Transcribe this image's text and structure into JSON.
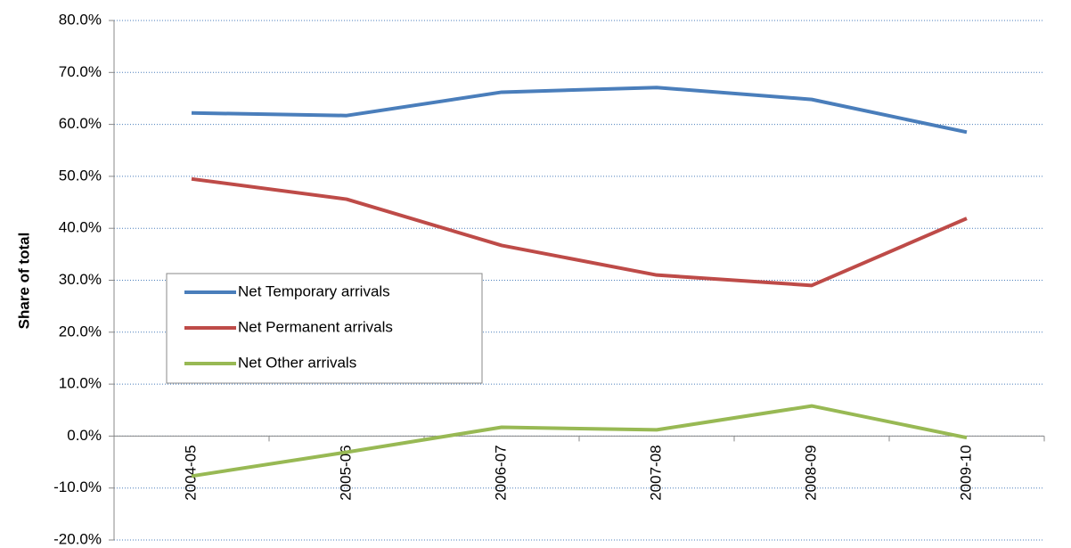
{
  "chart_data": {
    "type": "line",
    "y_label": "Share of total",
    "categories": [
      "2004-05",
      "2005-06",
      "2006-07",
      "2007-08",
      "2008-09",
      "2009-10"
    ],
    "series": [
      {
        "name": "Net Temporary arrivals",
        "color": "#4a7ebb",
        "values": [
          62.2,
          61.7,
          66.2,
          67.1,
          64.8,
          58.5
        ]
      },
      {
        "name": "Net Permanent arrivals",
        "color": "#be4b48",
        "values": [
          49.5,
          45.6,
          36.7,
          31.0,
          29.0,
          41.9
        ]
      },
      {
        "name": "Net Other arrivals",
        "color": "#98b954",
        "values": [
          -7.7,
          -3.1,
          1.7,
          1.2,
          5.8,
          -0.3
        ]
      }
    ],
    "ylim": [
      -20,
      80
    ],
    "yticks": [
      {
        "value": -20,
        "label": "-20.0%"
      },
      {
        "value": -10,
        "label": "-10.0%"
      },
      {
        "value": 0,
        "label": "0.0%"
      },
      {
        "value": 10,
        "label": "10.0%"
      },
      {
        "value": 20,
        "label": "20.0%"
      },
      {
        "value": 30,
        "label": "30.0%"
      },
      {
        "value": 40,
        "label": "40.0%"
      },
      {
        "value": 50,
        "label": "50.0%"
      },
      {
        "value": 60,
        "label": "60.0%"
      },
      {
        "value": 70,
        "label": "70.0%"
      },
      {
        "value": 80,
        "label": "80.0%"
      }
    ],
    "grid": true,
    "legend": "left"
  }
}
